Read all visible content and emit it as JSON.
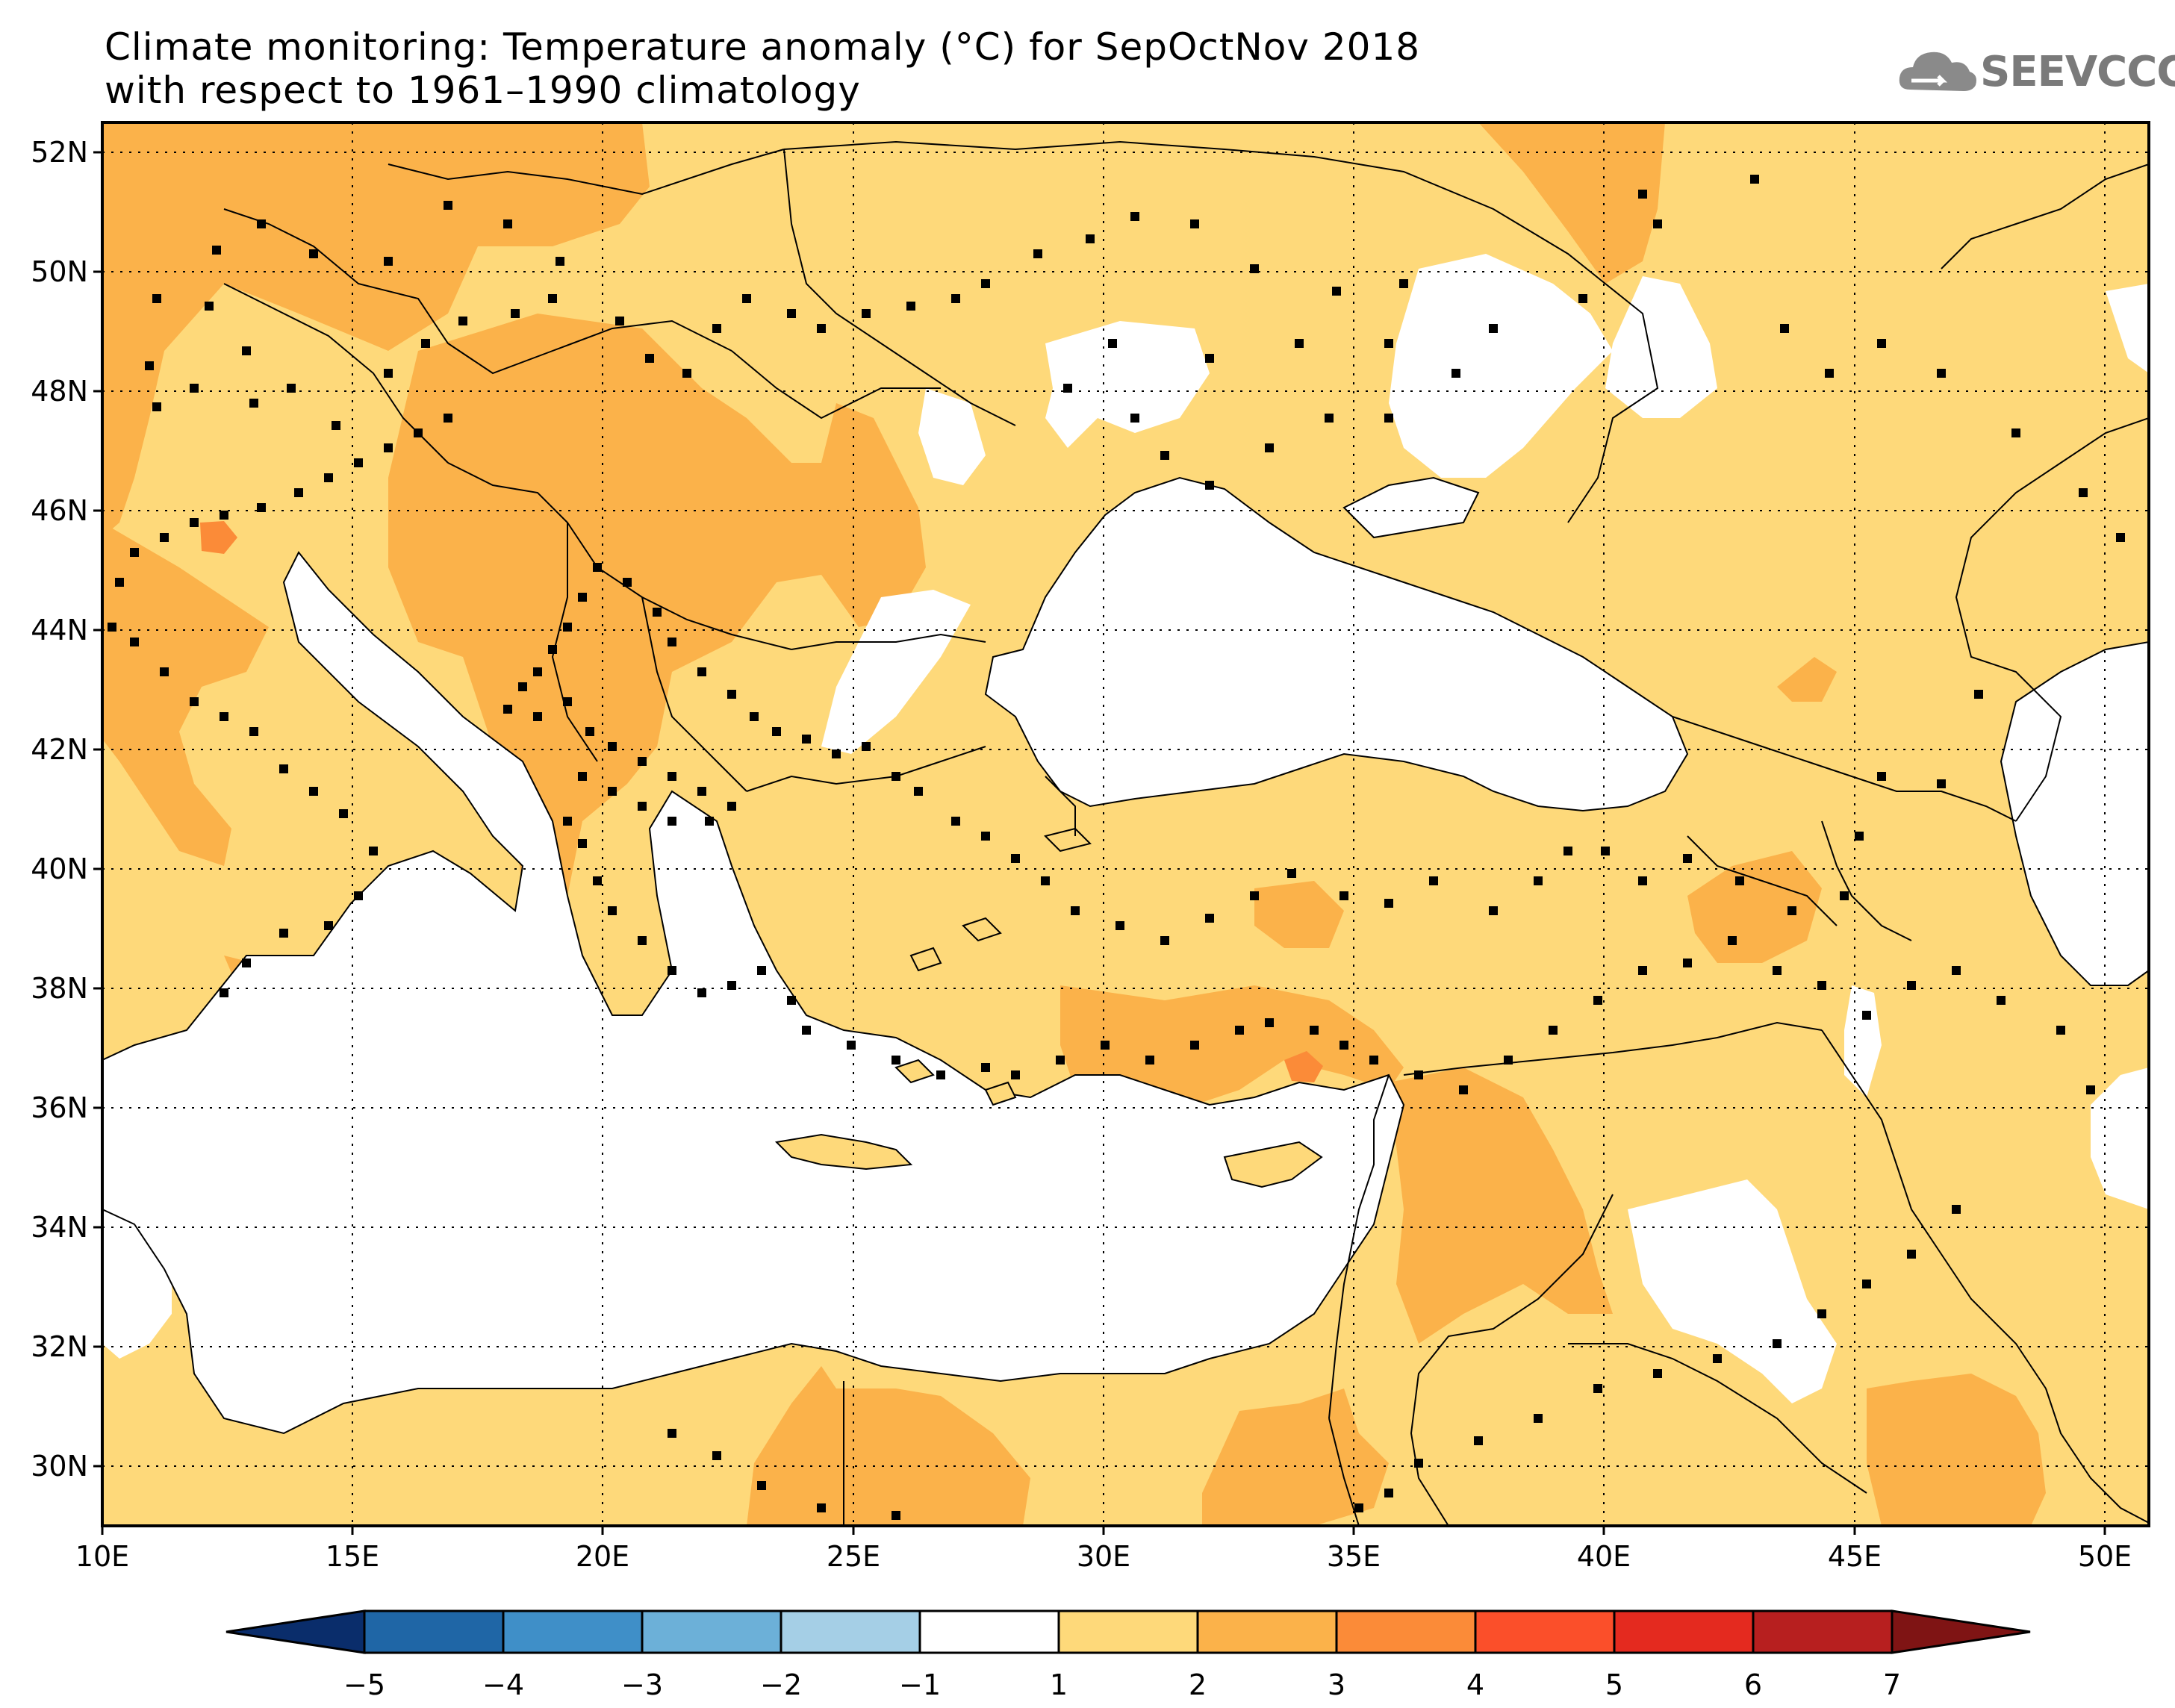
{
  "title": {
    "line1": "Climate monitoring: Temperature anomaly (°C) for SepOctNov 2018",
    "line2": "with respect to 1961–1990 climatology"
  },
  "logo": {
    "text": "SEEVCCC",
    "icon": "cloud-icon"
  },
  "map": {
    "lon_range": [
      10,
      51
    ],
    "lat_range": [
      29,
      52.5
    ],
    "lat_labels": [
      "52N",
      "50N",
      "48N",
      "46N",
      "44N",
      "42N",
      "40N",
      "38N",
      "36N",
      "34N",
      "32N",
      "30N"
    ],
    "lon_labels": [
      "10E",
      "15E",
      "20E",
      "25E",
      "30E",
      "35E",
      "40E",
      "45E",
      "50E"
    ],
    "grid": "dotted"
  },
  "colorbar": {
    "labels": [
      "−5",
      "−4",
      "−3",
      "−2",
      "−1",
      "1",
      "2",
      "3",
      "4",
      "5",
      "6",
      "7"
    ],
    "colors": [
      "#0a2d6b",
      "#1f66a6",
      "#3f8fc8",
      "#6cb0d8",
      "#a5cfe6",
      "#ffffff",
      "#fed97a",
      "#fbb24a",
      "#fb8b38",
      "#fb4f2a",
      "#e42a1f",
      "#b71f1f",
      "#7f1414"
    ]
  }
}
